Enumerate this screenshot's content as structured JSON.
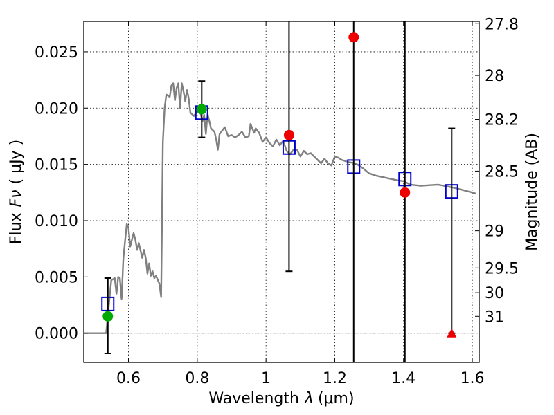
{
  "chart_data": {
    "type": "scatter",
    "xlabel": "Wavelength",
    "xlabel_symbol": "λ",
    "xlabel_unit": "(μm)",
    "ylabel": "Flux",
    "ylabel_symbol": "Fν",
    "ylabel_unit": "( μJy )",
    "y2label": "Magnitude (AB)",
    "xlim": [
      0.47,
      1.62
    ],
    "ylim": [
      -0.0026,
      0.0277
    ],
    "grid": true,
    "x_ticks": [
      0.6,
      0.8,
      1.0,
      1.2,
      1.4,
      1.6
    ],
    "x_tick_labels": [
      "0.6",
      "0.8",
      "1",
      "1.2",
      "1.4",
      "1.6"
    ],
    "y_ticks": [
      0.0,
      0.005,
      0.01,
      0.015,
      0.02,
      0.025
    ],
    "y_tick_labels": [
      "0.000",
      "0.005",
      "0.010",
      "0.015",
      "0.020",
      "0.025"
    ],
    "y2_ticks": [
      {
        "label": "27.8",
        "flux": 0.0275
      },
      {
        "label": "28",
        "flux": 0.0229
      },
      {
        "label": "28.2",
        "flux": 0.019
      },
      {
        "label": "28.5",
        "flux": 0.0144
      },
      {
        "label": "29",
        "flux": 0.0091
      },
      {
        "label": "29.5",
        "flux": 0.0058
      },
      {
        "label": "30",
        "flux": 0.0036
      },
      {
        "label": "31",
        "flux": 0.0015
      }
    ],
    "template_spectrum": {
      "color": "#808080",
      "x": [
        0.47,
        0.535,
        0.55,
        0.56,
        0.565,
        0.57,
        0.575,
        0.58,
        0.585,
        0.59,
        0.595,
        0.6,
        0.605,
        0.61,
        0.615,
        0.62,
        0.625,
        0.63,
        0.64,
        0.645,
        0.65,
        0.655,
        0.66,
        0.665,
        0.67,
        0.675,
        0.68,
        0.69,
        0.695,
        0.7,
        0.705,
        0.71,
        0.72,
        0.725,
        0.73,
        0.735,
        0.74,
        0.745,
        0.75,
        0.755,
        0.76,
        0.765,
        0.77,
        0.775,
        0.78,
        0.79,
        0.8,
        0.81,
        0.815,
        0.82,
        0.825,
        0.83,
        0.84,
        0.85,
        0.855,
        0.86,
        0.865,
        0.87,
        0.88,
        0.89,
        0.9,
        0.91,
        0.92,
        0.93,
        0.94,
        0.95,
        0.955,
        0.96,
        0.965,
        0.97,
        0.98,
        0.99,
        1.0,
        1.01,
        1.02,
        1.03,
        1.04,
        1.05,
        1.06,
        1.07,
        1.08,
        1.09,
        1.1,
        1.11,
        1.12,
        1.13,
        1.14,
        1.15,
        1.16,
        1.17,
        1.18,
        1.19,
        1.2,
        1.21,
        1.22,
        1.24,
        1.26,
        1.28,
        1.3,
        1.32,
        1.35,
        1.38,
        1.4,
        1.42,
        1.45,
        1.5,
        1.55,
        1.6,
        1.61
      ],
      "y": [
        0.0,
        0.0,
        0.0047,
        0.0049,
        0.0035,
        0.005,
        0.0049,
        0.003,
        0.0066,
        0.0082,
        0.0097,
        0.0094,
        0.0077,
        0.0083,
        0.0089,
        0.0083,
        0.0074,
        0.008,
        0.0067,
        0.0074,
        0.0067,
        0.0053,
        0.0062,
        0.0051,
        0.0055,
        0.0049,
        0.0051,
        0.0044,
        0.0032,
        0.017,
        0.02,
        0.0212,
        0.021,
        0.022,
        0.0222,
        0.0207,
        0.0218,
        0.0222,
        0.02,
        0.0222,
        0.0215,
        0.0206,
        0.0216,
        0.0209,
        0.0196,
        0.0193,
        0.0197,
        0.0195,
        0.0188,
        0.0194,
        0.0177,
        0.0195,
        0.0182,
        0.0179,
        0.0172,
        0.0163,
        0.0177,
        0.0179,
        0.0183,
        0.0175,
        0.0176,
        0.0174,
        0.0176,
        0.0179,
        0.0174,
        0.0175,
        0.0186,
        0.0182,
        0.0178,
        0.0182,
        0.0178,
        0.017,
        0.0174,
        0.0169,
        0.0166,
        0.0172,
        0.0167,
        0.0171,
        0.0162,
        0.0159,
        0.0163,
        0.0163,
        0.0157,
        0.0162,
        0.0159,
        0.016,
        0.0157,
        0.0154,
        0.0151,
        0.0155,
        0.0151,
        0.0149,
        0.0157,
        0.0156,
        0.0154,
        0.0152,
        0.0151,
        0.0147,
        0.0142,
        0.014,
        0.0138,
        0.0136,
        0.0135,
        0.0132,
        0.0131,
        0.0132,
        0.0129,
        0.0125,
        0.0124
      ]
    },
    "model_fluxes": {
      "color": "#0000cc",
      "points": [
        {
          "x": 0.54,
          "y": 0.0026
        },
        {
          "x": 0.813,
          "y": 0.0196
        },
        {
          "x": 1.067,
          "y": 0.0165
        },
        {
          "x": 1.255,
          "y": 0.0148
        },
        {
          "x": 1.404,
          "y": 0.0137
        },
        {
          "x": 1.54,
          "y": 0.0126
        }
      ]
    },
    "observed_ground": {
      "color": "#00aa00",
      "points": [
        {
          "x": 0.54,
          "y": 0.0015,
          "err_low": -0.0018,
          "err_high": 0.0049
        },
        {
          "x": 0.813,
          "y": 0.0199,
          "err_low": 0.0174,
          "err_high": 0.0224
        }
      ]
    },
    "observed_space": {
      "color": "#ee0000",
      "points": [
        {
          "x": 1.067,
          "y": 0.0176,
          "err_low": 0.0055,
          "err_high": 0.0277
        },
        {
          "x": 1.255,
          "y": 0.0263,
          "err_low": -0.0026,
          "err_high": 0.0277
        },
        {
          "x": 1.404,
          "y": 0.0125,
          "err_low": -0.0026,
          "err_high": 0.0277
        }
      ]
    },
    "upper_limits": {
      "color": "#ee0000",
      "points": [
        {
          "x": 1.54,
          "y": 0.0,
          "err_low": 0.0,
          "err_high": 0.0182
        }
      ]
    }
  }
}
